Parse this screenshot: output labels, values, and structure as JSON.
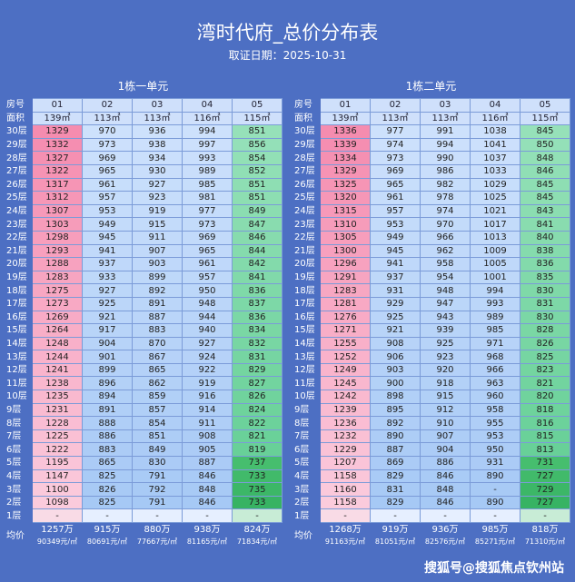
{
  "header": {
    "title": "湾时代府_总价分布表",
    "date": "取证日期：2025-10-31"
  },
  "tables": [
    {
      "title": "1栋一单元",
      "room_label": "房号",
      "rooms": [
        "01",
        "02",
        "03",
        "04",
        "05"
      ],
      "area_label": "面积",
      "areas": [
        "139㎡",
        "113㎡",
        "113㎡",
        "116㎡",
        "115㎡"
      ],
      "rows": [
        {
          "floor": "30层",
          "prices": [
            1329,
            970,
            936,
            994,
            851
          ]
        },
        {
          "floor": "29层",
          "prices": [
            1332,
            973,
            938,
            997,
            856
          ]
        },
        {
          "floor": "28层",
          "prices": [
            1327,
            969,
            934,
            993,
            854
          ]
        },
        {
          "floor": "27层",
          "prices": [
            1322,
            965,
            930,
            989,
            852
          ]
        },
        {
          "floor": "26层",
          "prices": [
            1317,
            961,
            927,
            985,
            851
          ]
        },
        {
          "floor": "25层",
          "prices": [
            1312,
            957,
            923,
            981,
            851
          ]
        },
        {
          "floor": "24层",
          "prices": [
            1307,
            953,
            919,
            977,
            849
          ]
        },
        {
          "floor": "23层",
          "prices": [
            1303,
            949,
            915,
            973,
            847
          ]
        },
        {
          "floor": "22层",
          "prices": [
            1298,
            945,
            911,
            969,
            846
          ]
        },
        {
          "floor": "21层",
          "prices": [
            1293,
            941,
            907,
            965,
            844
          ]
        },
        {
          "floor": "20层",
          "prices": [
            1288,
            937,
            903,
            961,
            842
          ]
        },
        {
          "floor": "19层",
          "prices": [
            1283,
            933,
            899,
            957,
            841
          ]
        },
        {
          "floor": "18层",
          "prices": [
            1275,
            927,
            892,
            950,
            836
          ]
        },
        {
          "floor": "17层",
          "prices": [
            1273,
            925,
            891,
            948,
            837
          ]
        },
        {
          "floor": "16层",
          "prices": [
            1269,
            921,
            887,
            944,
            836
          ]
        },
        {
          "floor": "15层",
          "prices": [
            1264,
            917,
            883,
            940,
            834
          ]
        },
        {
          "floor": "14层",
          "prices": [
            1248,
            904,
            870,
            927,
            832
          ]
        },
        {
          "floor": "13层",
          "prices": [
            1244,
            901,
            867,
            924,
            831
          ]
        },
        {
          "floor": "12层",
          "prices": [
            1241,
            899,
            865,
            922,
            829
          ]
        },
        {
          "floor": "11层",
          "prices": [
            1238,
            896,
            862,
            919,
            827
          ]
        },
        {
          "floor": "10层",
          "prices": [
            1235,
            894,
            859,
            916,
            826
          ]
        },
        {
          "floor": "9层",
          "prices": [
            1231,
            891,
            857,
            914,
            824
          ]
        },
        {
          "floor": "8层",
          "prices": [
            1228,
            888,
            854,
            911,
            822
          ]
        },
        {
          "floor": "7层",
          "prices": [
            1225,
            886,
            851,
            908,
            821
          ]
        },
        {
          "floor": "6层",
          "prices": [
            1222,
            883,
            849,
            905,
            819
          ]
        },
        {
          "floor": "5层",
          "prices": [
            1195,
            865,
            830,
            887,
            737
          ]
        },
        {
          "floor": "4层",
          "prices": [
            1147,
            825,
            791,
            846,
            733
          ]
        },
        {
          "floor": "3层",
          "prices": [
            1100,
            826,
            792,
            848,
            735
          ]
        },
        {
          "floor": "2层",
          "prices": [
            1098,
            825,
            791,
            846,
            733
          ]
        },
        {
          "floor": "1层",
          "prices": [
            "-",
            "-",
            "-",
            "-",
            "-"
          ]
        }
      ],
      "avg_label": "均价",
      "avg_totals": [
        "1257万",
        "915万",
        "880万",
        "938万",
        "824万"
      ],
      "avg_unit": [
        "90349元/㎡",
        "80691元/㎡",
        "77667元/㎡",
        "81165元/㎡",
        "71834元/㎡"
      ]
    },
    {
      "title": "1栋二单元",
      "room_label": "房号",
      "rooms": [
        "01",
        "02",
        "03",
        "04",
        "05"
      ],
      "area_label": "面积",
      "areas": [
        "139㎡",
        "113㎡",
        "113㎡",
        "116㎡",
        "115㎡"
      ],
      "rows": [
        {
          "floor": "30层",
          "prices": [
            1336,
            977,
            991,
            1038,
            845
          ]
        },
        {
          "floor": "29层",
          "prices": [
            1339,
            974,
            994,
            1041,
            850
          ]
        },
        {
          "floor": "28层",
          "prices": [
            1334,
            973,
            990,
            1037,
            848
          ]
        },
        {
          "floor": "27层",
          "prices": [
            1329,
            969,
            986,
            1033,
            846
          ]
        },
        {
          "floor": "26层",
          "prices": [
            1325,
            965,
            982,
            1029,
            845
          ]
        },
        {
          "floor": "25层",
          "prices": [
            1320,
            961,
            978,
            1025,
            845
          ]
        },
        {
          "floor": "24层",
          "prices": [
            1315,
            957,
            974,
            1021,
            843
          ]
        },
        {
          "floor": "23层",
          "prices": [
            1310,
            953,
            970,
            1017,
            841
          ]
        },
        {
          "floor": "22层",
          "prices": [
            1305,
            949,
            966,
            1013,
            840
          ]
        },
        {
          "floor": "21层",
          "prices": [
            1300,
            945,
            962,
            1009,
            838
          ]
        },
        {
          "floor": "20层",
          "prices": [
            1296,
            941,
            958,
            1005,
            836
          ]
        },
        {
          "floor": "19层",
          "prices": [
            1291,
            937,
            954,
            1001,
            835
          ]
        },
        {
          "floor": "18层",
          "prices": [
            1283,
            931,
            948,
            994,
            830
          ]
        },
        {
          "floor": "17层",
          "prices": [
            1281,
            929,
            947,
            993,
            831
          ]
        },
        {
          "floor": "16层",
          "prices": [
            1276,
            925,
            943,
            989,
            830
          ]
        },
        {
          "floor": "15层",
          "prices": [
            1271,
            921,
            939,
            985,
            828
          ]
        },
        {
          "floor": "14层",
          "prices": [
            1255,
            908,
            925,
            971,
            826
          ]
        },
        {
          "floor": "13层",
          "prices": [
            1252,
            906,
            923,
            968,
            825
          ]
        },
        {
          "floor": "12层",
          "prices": [
            1249,
            903,
            920,
            966,
            823
          ]
        },
        {
          "floor": "11层",
          "prices": [
            1245,
            900,
            918,
            963,
            821
          ]
        },
        {
          "floor": "10层",
          "prices": [
            1242,
            898,
            915,
            960,
            820
          ]
        },
        {
          "floor": "9层",
          "prices": [
            1239,
            895,
            912,
            958,
            818
          ]
        },
        {
          "floor": "8层",
          "prices": [
            1236,
            892,
            910,
            955,
            816
          ]
        },
        {
          "floor": "7层",
          "prices": [
            1232,
            890,
            907,
            953,
            815
          ]
        },
        {
          "floor": "6层",
          "prices": [
            1229,
            887,
            904,
            950,
            813
          ]
        },
        {
          "floor": "5层",
          "prices": [
            1207,
            869,
            886,
            931,
            731
          ]
        },
        {
          "floor": "4层",
          "prices": [
            1158,
            829,
            846,
            890,
            727
          ]
        },
        {
          "floor": "3层",
          "prices": [
            1160,
            831,
            848,
            "-",
            729
          ]
        },
        {
          "floor": "2层",
          "prices": [
            1158,
            829,
            846,
            890,
            727
          ]
        },
        {
          "floor": "1层",
          "prices": [
            "-",
            "-",
            "-",
            "-",
            "-"
          ]
        }
      ],
      "avg_label": "均价",
      "avg_totals": [
        "1268万",
        "919万",
        "936万",
        "985万",
        "818万"
      ],
      "avg_unit": [
        "91163元/㎡",
        "81051元/㎡",
        "82576元/㎡",
        "85271元/㎡",
        "71310元/㎡"
      ]
    }
  ],
  "watermark": "搜狐号@搜狐焦点钦州站"
}
